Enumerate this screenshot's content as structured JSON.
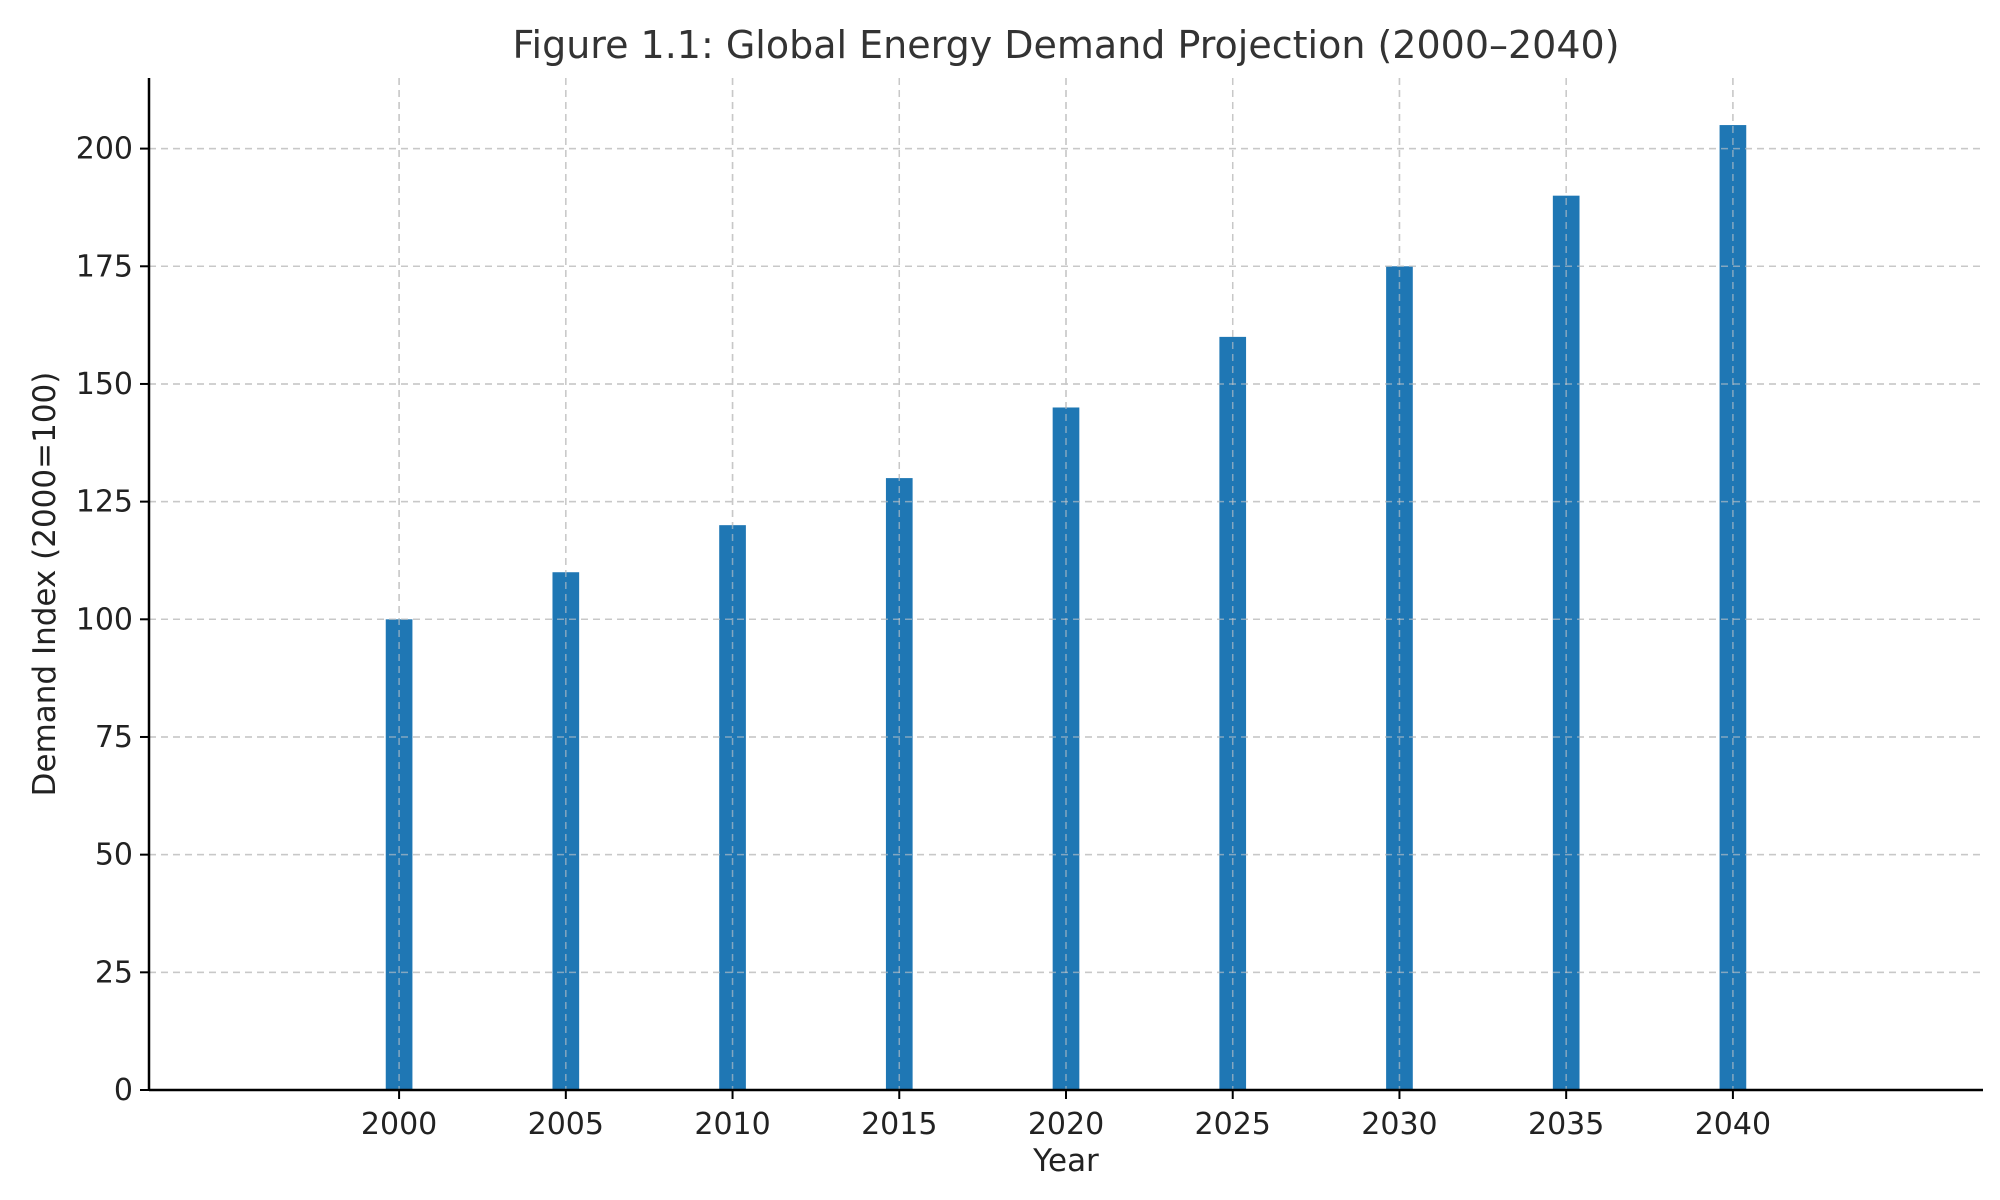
{
  "chart_data": {
    "type": "bar",
    "title": "Figure 1.1: Global Energy Demand Projection (2000–2040)",
    "xlabel": "Year",
    "ylabel": "Demand Index (2000=100)",
    "x": [
      2000,
      2005,
      2010,
      2015,
      2020,
      2025,
      2030,
      2035,
      2040
    ],
    "values": [
      100,
      110,
      120,
      130,
      145,
      160,
      175,
      190,
      205
    ],
    "xlim": [
      1992.5,
      2047.5
    ],
    "ylim": [
      0,
      215
    ],
    "xticks": [
      2000,
      2005,
      2010,
      2015,
      2020,
      2025,
      2030,
      2035,
      2040
    ],
    "yticks": [
      0,
      25,
      50,
      75,
      100,
      125,
      150,
      175,
      200
    ],
    "bar_width": 0.8,
    "grid": true,
    "bar_color": "#1f77b4"
  }
}
